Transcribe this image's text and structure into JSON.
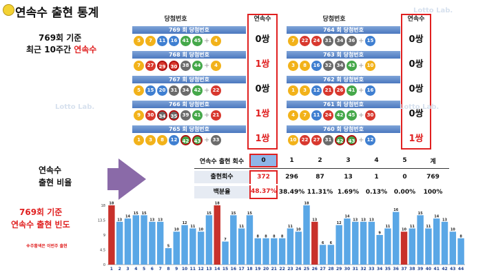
{
  "title": "연속수 출현 통계",
  "left_labels": {
    "basis": "769회 기준",
    "recent_prefix": "최근 10주간 ",
    "recent_red": "연속수",
    "ratio_line1": "연속수",
    "ratio_line2": "출현 비율",
    "freq_line1": "769회 기준",
    "freq_line2": "연속수 출현 빈도",
    "note": "※주황색은 이번주 출현"
  },
  "column_headers": {
    "winning_numbers": "당첨번호",
    "consecutive": "연속수"
  },
  "draws_left": [
    {
      "label": "769 회 당첨번호",
      "balls": [
        5,
        7,
        11,
        16,
        41,
        45
      ],
      "bonus": 4,
      "highlight": [],
      "count": "0쌍"
    },
    {
      "label": "768 회 당첨번호",
      "balls": [
        7,
        27,
        29,
        30,
        38,
        44
      ],
      "bonus": 4,
      "highlight": [
        29,
        30
      ],
      "count": "1쌍"
    },
    {
      "label": "767 회 당첨번호",
      "balls": [
        5,
        15,
        20,
        31,
        34,
        42
      ],
      "bonus": 22,
      "highlight": [],
      "count": "0쌍"
    },
    {
      "label": "766 회 당첨번호",
      "balls": [
        9,
        30,
        34,
        35,
        39,
        41
      ],
      "bonus": 21,
      "highlight": [
        34,
        35
      ],
      "count": "1쌍"
    },
    {
      "label": "765 회 당첨번호",
      "balls": [
        1,
        3,
        8,
        12,
        42,
        43
      ],
      "bonus": 33,
      "highlight": [
        42,
        43
      ],
      "count": "1쌍"
    }
  ],
  "draws_right": [
    {
      "label": "764 회 당첨번호",
      "balls": [
        7,
        22,
        24,
        31,
        34,
        36
      ],
      "bonus": 15,
      "highlight": [],
      "count": "0쌍"
    },
    {
      "label": "763 회 당첨번호",
      "balls": [
        3,
        8,
        16,
        32,
        34,
        43
      ],
      "bonus": 10,
      "highlight": [],
      "count": "0쌍"
    },
    {
      "label": "762 회 당첨번호",
      "balls": [
        1,
        3,
        12,
        21,
        26,
        41
      ],
      "bonus": 16,
      "highlight": [],
      "count": "0쌍"
    },
    {
      "label": "761 회 당첨번호",
      "balls": [
        4,
        7,
        11,
        24,
        42,
        45
      ],
      "bonus": 30,
      "highlight": [],
      "count": "0쌍"
    },
    {
      "label": "760 회 당첨번호",
      "balls": [
        10,
        22,
        27,
        31,
        42,
        43
      ],
      "bonus": 12,
      "highlight": [
        42,
        43
      ],
      "count": "1쌍"
    }
  ],
  "stats": {
    "header_label": "연속수 출현 회수",
    "headers": [
      "0",
      "1",
      "2",
      "3",
      "4",
      "5",
      "계"
    ],
    "row1_label": "출현회수",
    "row1": [
      "372",
      "296",
      "87",
      "13",
      "1",
      "0",
      "769"
    ],
    "row2_label": "백분율",
    "row2": [
      "48.37%",
      "38.49%",
      "11.31%",
      "1.69%",
      "0.13%",
      "0.00%",
      "100%"
    ]
  },
  "colors": {
    "accent_red": "#e02020",
    "bar_blue": "#5aa7e6",
    "bar_red": "#c8312b",
    "ball_yellow": "#f2b21a",
    "ball_blue": "#3f7fd1",
    "ball_red": "#d8382e",
    "ball_gray": "#6b6b6b",
    "ball_green": "#45a84a"
  },
  "chart_data": {
    "type": "bar",
    "categories": [
      "1",
      "2",
      "3",
      "4",
      "5",
      "6",
      "7",
      "8",
      "9",
      "10",
      "11",
      "12",
      "13",
      "14",
      "15",
      "16",
      "17",
      "18",
      "19",
      "20",
      "21",
      "22",
      "23",
      "24",
      "25",
      "26",
      "27",
      "28",
      "29",
      "30",
      "31",
      "32",
      "33",
      "34",
      "35",
      "36",
      "37",
      "38",
      "39",
      "40",
      "41",
      "42",
      "43",
      "44"
    ],
    "values": [
      18,
      13,
      14,
      15,
      15,
      13,
      13,
      5,
      10,
      12,
      11,
      10,
      15,
      18,
      7,
      15,
      11,
      15,
      8,
      8,
      8,
      8,
      11,
      10,
      18,
      13,
      6,
      6,
      12,
      14,
      13,
      13,
      13,
      9,
      11,
      16,
      10,
      11,
      15,
      11,
      14,
      13,
      10,
      8
    ],
    "highlight": [
      "1",
      "14",
      "26",
      "37"
    ],
    "ylim": [
      0,
      18
    ],
    "yticks": [
      "0",
      "4.5",
      "9",
      "13.5",
      "18"
    ]
  },
  "watermark": "Lotto Lab."
}
